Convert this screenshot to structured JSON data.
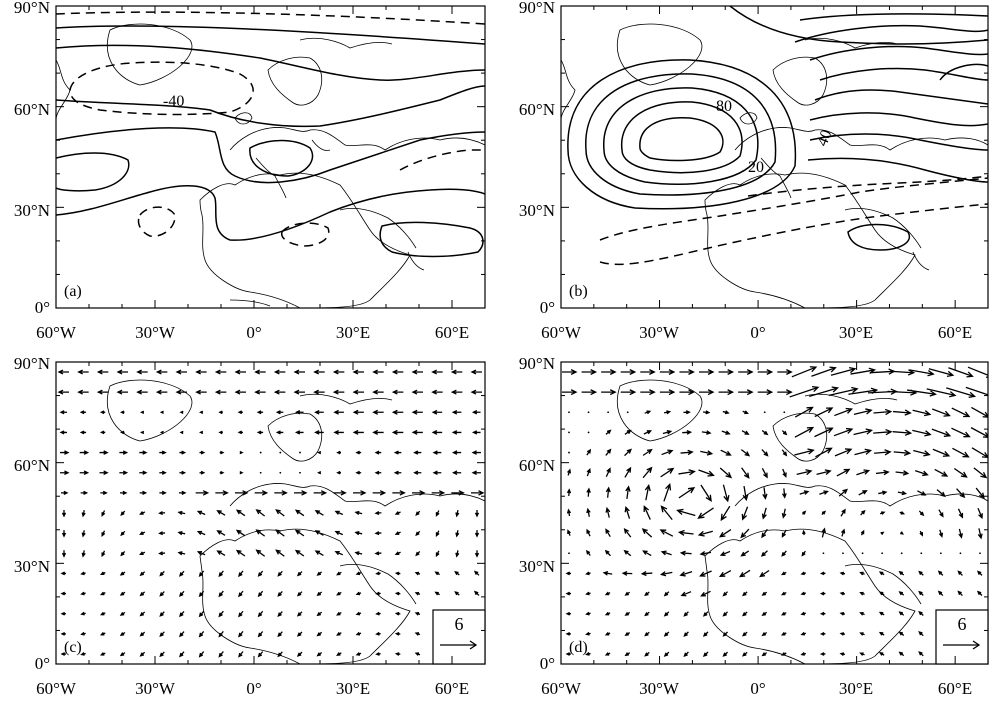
{
  "figure": {
    "lon_ticks": [
      "60°W",
      "30°W",
      "0°",
      "30°E",
      "60°E"
    ],
    "lat_ticks": [
      "90°N",
      "60°N",
      "30°N",
      "0°"
    ],
    "lon_range": [
      -60,
      70
    ],
    "lat_range": [
      0,
      90
    ]
  },
  "panels": [
    {
      "id": "a",
      "letter": "(a)",
      "kind": "contour",
      "contour_labels": [
        "-40"
      ]
    },
    {
      "id": "b",
      "letter": "(b)",
      "kind": "contour",
      "contour_labels": [
        "80",
        "40",
        "20"
      ]
    },
    {
      "id": "c",
      "letter": "(c)",
      "kind": "vector",
      "reference_vector": "6"
    },
    {
      "id": "d",
      "letter": "(d)",
      "kind": "vector",
      "reference_vector": "6"
    }
  ],
  "colors": {
    "line": "#000000",
    "background": "#ffffff"
  }
}
